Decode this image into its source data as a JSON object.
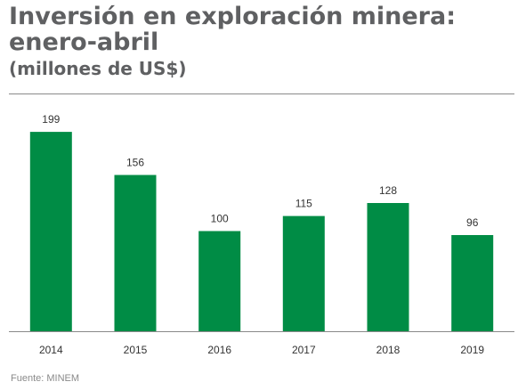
{
  "header": {
    "title_line1": "Inversión en exploración minera:",
    "title_line2": "enero-abril",
    "subtitle": "(millones de US$)"
  },
  "footer": {
    "source": "Fuente: MINEM"
  },
  "colors": {
    "bar": "#008c45",
    "text": "#5f6062",
    "rule": "#8a8a8a",
    "label": "#333333"
  },
  "chart_data": {
    "type": "bar",
    "title": "Inversión en exploración minera: enero-abril",
    "subtitle": "(millones de US$)",
    "xlabel": "",
    "ylabel": "",
    "categories": [
      "2014",
      "2015",
      "2016",
      "2017",
      "2018",
      "2019"
    ],
    "values": [
      199,
      156,
      100,
      115,
      128,
      96
    ],
    "data_labels": [
      "199",
      "156",
      "100",
      "115",
      "128",
      "96"
    ],
    "ylim": [
      0,
      200
    ],
    "grid": false,
    "legend": "none"
  }
}
